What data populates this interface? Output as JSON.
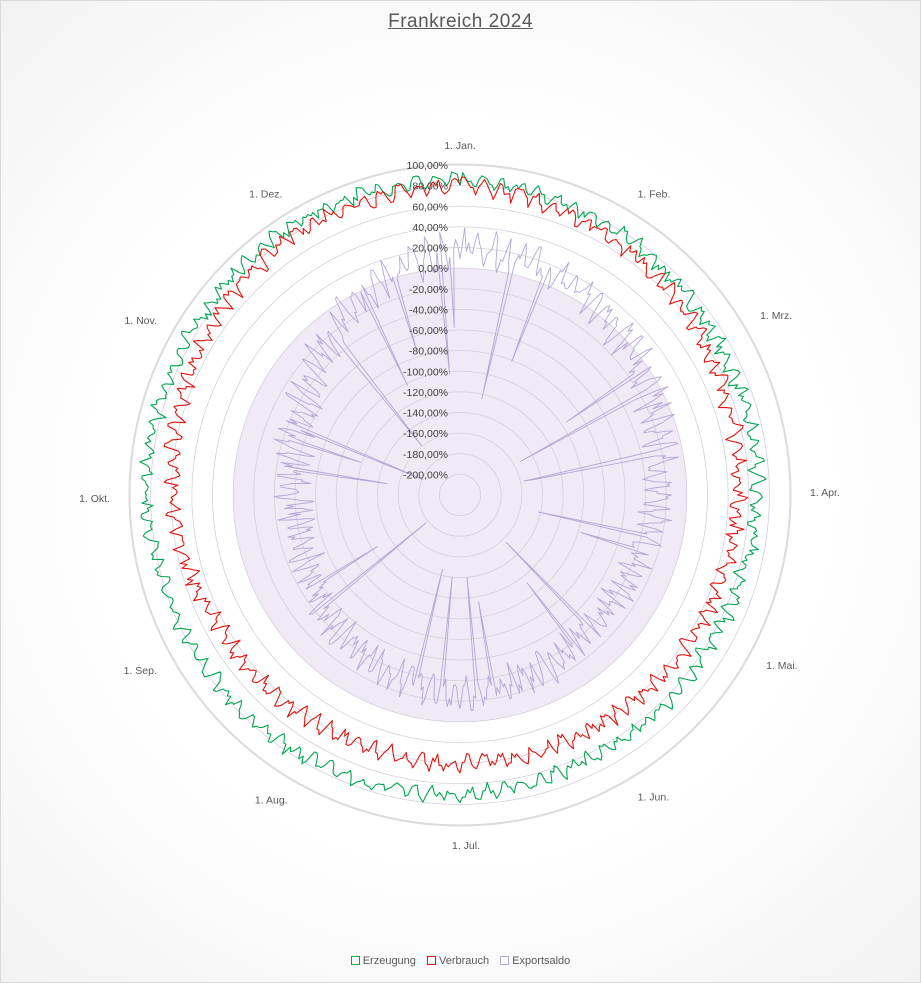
{
  "chart_data": {
    "type": "radar",
    "title": "Frankreich 2024",
    "categories": [
      "1. Jan.",
      "1. Feb.",
      "1. Mrz.",
      "1. Apr.",
      "1. Mai.",
      "1. Jun.",
      "1. Jul.",
      "1. Aug.",
      "1. Sep.",
      "1. Okt.",
      "1. Nov.",
      "1. Dez."
    ],
    "category_day_of_year": [
      0,
      31,
      60,
      91,
      121,
      152,
      182,
      213,
      244,
      274,
      305,
      335
    ],
    "days_in_year": 366,
    "r_ticks": [
      "100,00%",
      "80,00%",
      "60,00%",
      "40,00%",
      "20,00%",
      "0,00%",
      "-20,00%",
      "-40,00%",
      "-60,00%",
      "-80,00%",
      "-100,00%",
      "-120,00%",
      "-140,00%",
      "-160,00%",
      "-180,00%",
      "-200,00%"
    ],
    "r_tick_values": [
      100,
      80,
      60,
      40,
      20,
      0,
      -20,
      -40,
      -60,
      -80,
      -100,
      -120,
      -140,
      -160,
      -180,
      -200
    ],
    "rlim": [
      -220,
      100
    ],
    "series": [
      {
        "name": "Erzeugung",
        "color": "#00a650",
        "monthly_mean": [
          85,
          78,
          70,
          68,
          62,
          64,
          70,
          75,
          78,
          84,
          84,
          88
        ],
        "amplitude": 8
      },
      {
        "name": "Verbrauch",
        "color": "#e3120b",
        "monthly_mean": [
          80,
          70,
          58,
          50,
          44,
          40,
          40,
          41,
          46,
          58,
          70,
          80
        ],
        "amplitude": 9
      },
      {
        "name": "Exportsaldo",
        "color": "#b4a7d6",
        "monthly_mean": [
          20,
          10,
          -10,
          -30,
          -40,
          -35,
          -25,
          -40,
          -55,
          -60,
          -45,
          -10
        ],
        "amplitude": 18
      }
    ]
  },
  "legend": {
    "items": [
      {
        "label": "Erzeugung",
        "color": "#00a650"
      },
      {
        "label": "Verbrauch",
        "color": "#e3120b"
      },
      {
        "label": "Exportsaldo",
        "color": "#b4a7d6"
      }
    ]
  }
}
